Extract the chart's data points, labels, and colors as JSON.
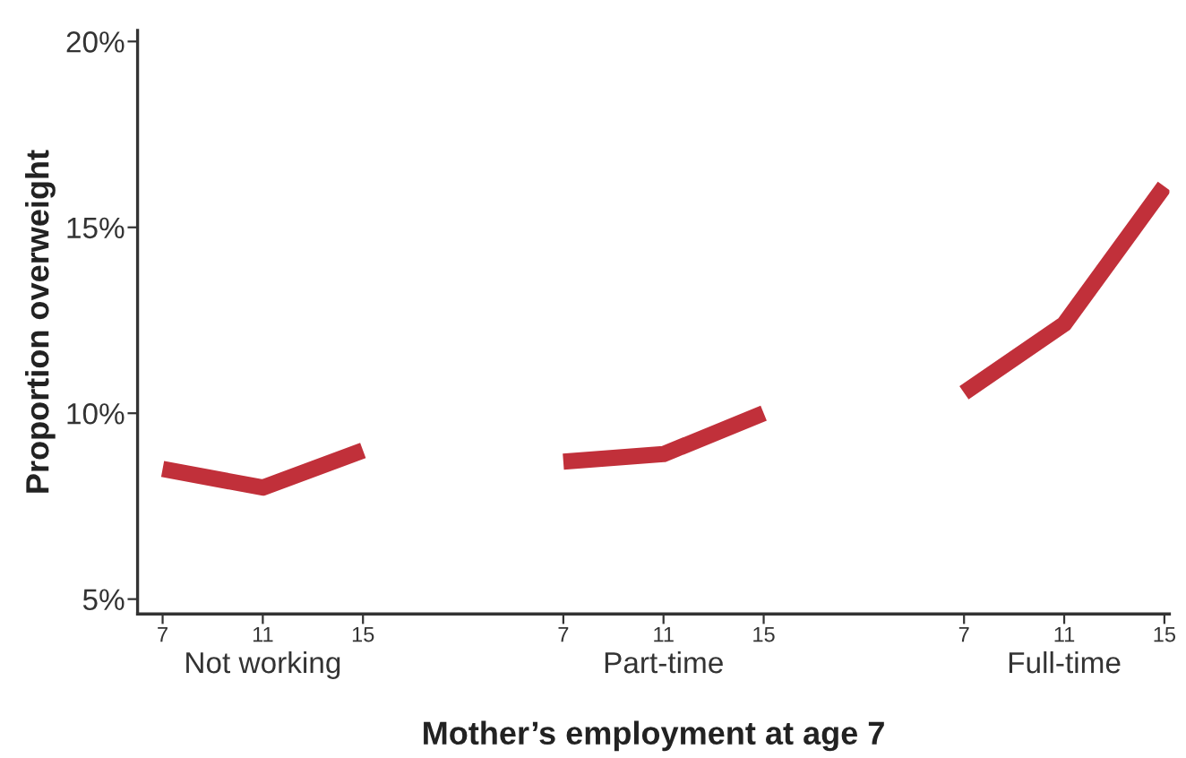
{
  "chart_data": {
    "type": "line",
    "xlabel": "Mother’s employment at age 7",
    "ylabel": "Proportion overweight",
    "categories": [
      "7",
      "11",
      "15",
      null,
      "7",
      "11",
      "15",
      null,
      "7",
      "11",
      "15"
    ],
    "series": [
      {
        "color": "#c1303a",
        "values": [
          8.5,
          8.0,
          9.0,
          null,
          8.7,
          8.9,
          10.0,
          null,
          10.55,
          12.4,
          16.1
        ]
      }
    ],
    "ylim": [
      4.6,
      20.3
    ],
    "yticks": [
      {
        "value": 5,
        "label": "5%"
      },
      {
        "value": 10,
        "label": "10%"
      },
      {
        "value": 15,
        "label": "15%"
      },
      {
        "value": 20,
        "label": "20%"
      }
    ],
    "annotations": [
      "Not working",
      "Part-time",
      "Full-time"
    ],
    "grid": false,
    "marker": "none",
    "line_style": "solid"
  }
}
